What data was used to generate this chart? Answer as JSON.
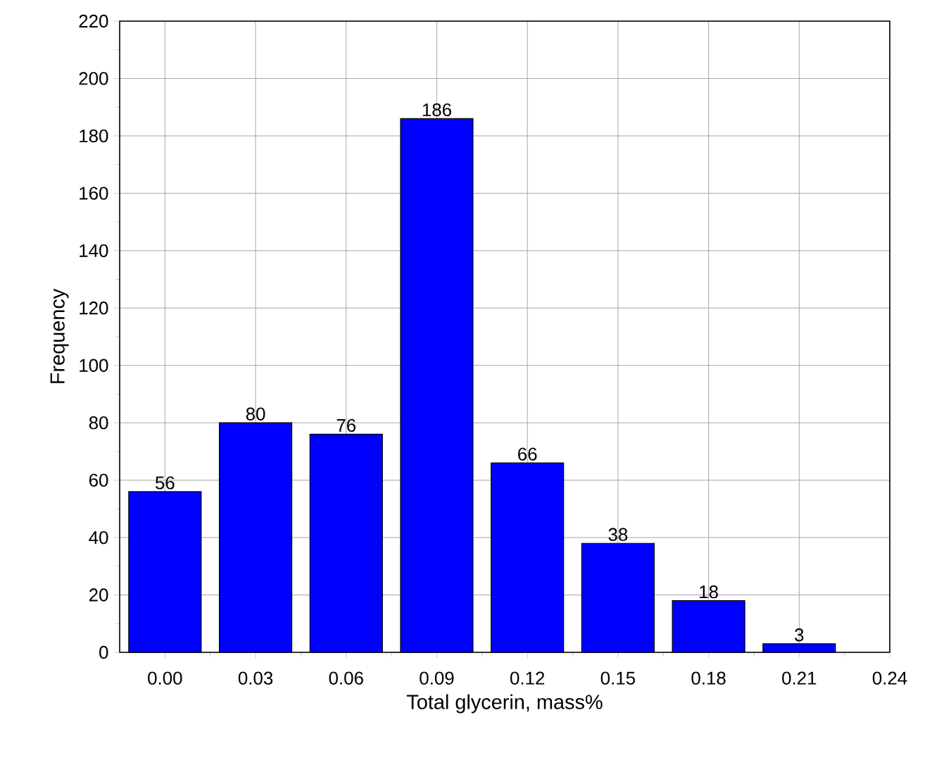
{
  "chart_data": {
    "type": "bar",
    "xlabel": "Total glycerin, mass%",
    "ylabel": "Frequency",
    "x": [
      0,
      0.03,
      0.06,
      0.09,
      0.12,
      0.15,
      0.18,
      0.21
    ],
    "values": [
      56,
      80,
      76,
      186,
      66,
      38,
      18,
      3
    ],
    "color": "#0000ff",
    "data_labels": true,
    "grid": true,
    "xlim": [
      -0.015,
      0.24
    ],
    "ylim": [
      0,
      220
    ],
    "xticks": [
      {
        "value": 0,
        "label": "0.00"
      },
      {
        "value": 0.03,
        "label": "0.03"
      },
      {
        "value": 0.06,
        "label": "0.06"
      },
      {
        "value": 0.09,
        "label": "0.09"
      },
      {
        "value": 0.12,
        "label": "0.12"
      },
      {
        "value": 0.15,
        "label": "0.15"
      },
      {
        "value": 0.18,
        "label": "0.18"
      },
      {
        "value": 0.21,
        "label": "0.21"
      },
      {
        "value": 0.24,
        "label": "0.24"
      }
    ],
    "yticks": [
      0,
      20,
      40,
      60,
      80,
      100,
      120,
      140,
      160,
      180,
      200,
      220
    ]
  }
}
